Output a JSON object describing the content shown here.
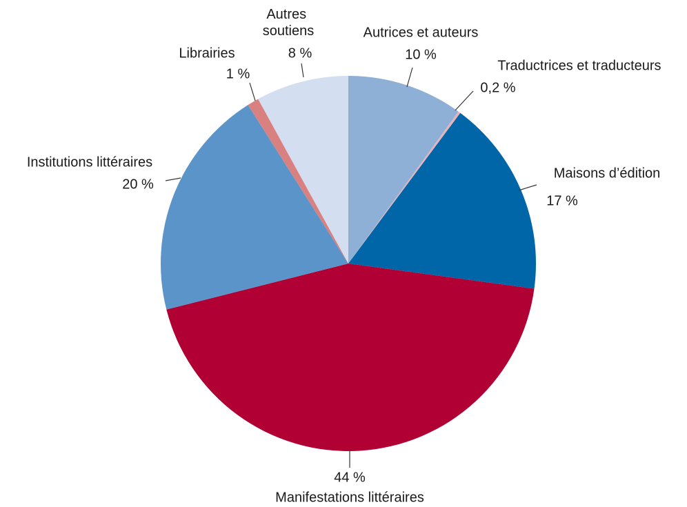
{
  "chart_data": {
    "type": "pie",
    "categories": [
      "Autrices et auteurs",
      "Traductrices et traducteurs",
      "Maisons d’édition",
      "Manifestations littéraires",
      "Institutions littéraires",
      "Librairies",
      "Autres soutiens"
    ],
    "values": [
      10,
      0.2,
      17,
      44,
      20,
      1,
      8
    ],
    "value_labels": [
      "10 %",
      "0,2 %",
      "17 %",
      "44 %",
      "20 %",
      "1 %",
      "8 %"
    ],
    "colors": [
      "#8eafd6",
      "#e6b3bb",
      "#0066a8",
      "#b00034",
      "#5b94c8",
      "#d98080",
      "#d3dff0"
    ]
  }
}
